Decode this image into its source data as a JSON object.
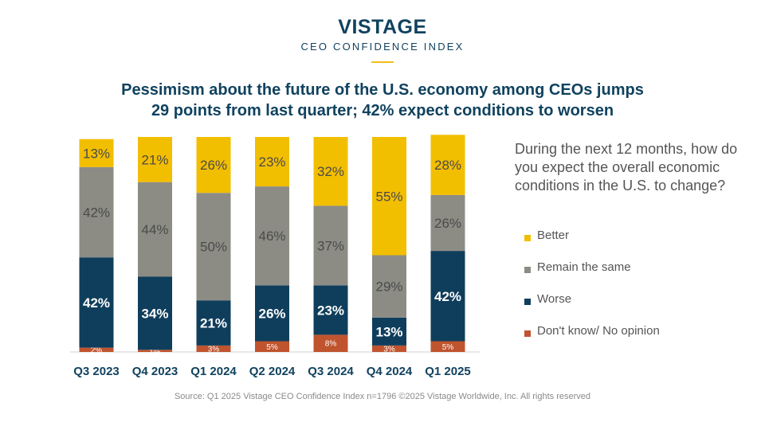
{
  "header": {
    "brand_name": "VISTAGE",
    "brand_subtitle": "CEO CONFIDENCE INDEX",
    "title_line1": "Pessimism about the future of the U.S. economy among CEOs jumps",
    "title_line2": "29 points from last quarter; 42% expect conditions to worsen"
  },
  "question": "During the next 12 months, how do you expect the overall economic conditions in the U.S. to change?",
  "source": "Source: Q1 2025 Vistage CEO Confidence Index n=1796 ©2025 Vistage Worldwide, Inc. All rights reserved",
  "colors": {
    "better": "#f2be00",
    "same": "#8c8c85",
    "worse": "#0f3e5c",
    "dont_know": "#c0542e",
    "brand": "#10425f",
    "accent": "#f2be1a"
  },
  "chart_data": {
    "type": "bar",
    "stacked": true,
    "categories": [
      "Q3 2023",
      "Q4 2023",
      "Q1 2024",
      "Q2 2024",
      "Q3 2024",
      "Q4 2024",
      "Q1 2025"
    ],
    "series": [
      {
        "key": "dont_know",
        "name": "Don't know/ No opinion",
        "values": [
          2,
          1,
          3,
          5,
          8,
          3,
          5
        ],
        "labels": [
          "2%",
          "1%",
          "3%",
          "5%",
          "8%",
          "3%",
          "5%"
        ]
      },
      {
        "key": "worse",
        "name": "Worse",
        "values": [
          42,
          34,
          21,
          26,
          23,
          13,
          42
        ],
        "labels": [
          "42%",
          "34%",
          "21%",
          "26%",
          "23%",
          "13%",
          "42%"
        ]
      },
      {
        "key": "same",
        "name": "Remain the same",
        "values": [
          42,
          44,
          50,
          46,
          37,
          29,
          26
        ],
        "labels": [
          "42%",
          "44%",
          "50%",
          "46%",
          "37%",
          "29%",
          "26%"
        ]
      },
      {
        "key": "better",
        "name": "Better",
        "values": [
          13,
          21,
          26,
          23,
          32,
          55,
          28
        ],
        "labels": [
          "13%",
          "21%",
          "26%",
          "23%",
          "32%",
          "55%",
          "28%"
        ]
      }
    ],
    "legend_order": [
      "better",
      "same",
      "worse",
      "dont_know"
    ],
    "legend": [
      {
        "key": "better",
        "label": "Better"
      },
      {
        "key": "same",
        "label": "Remain the same"
      },
      {
        "key": "worse",
        "label": "Worse"
      },
      {
        "key": "dont_know",
        "label": "Don't know/ No opinion"
      }
    ],
    "ylim": [
      0,
      100
    ],
    "xlabel": "",
    "ylabel": "",
    "grid": false,
    "legend_position": "right"
  }
}
